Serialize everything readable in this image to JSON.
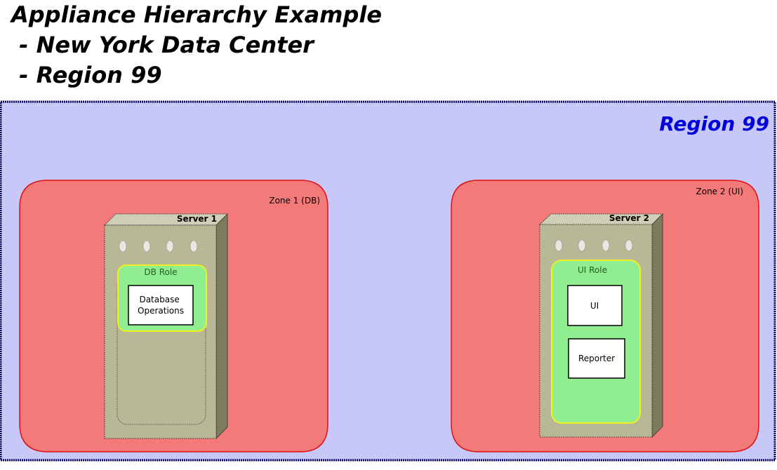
{
  "title": {
    "line1": "Appliance Hierarchy Example",
    "line2": " - New York Data Center",
    "line3": " - Region 99"
  },
  "region": {
    "label": "Region 99",
    "fill": "#c8c8f8",
    "border": "#000066",
    "label_color": "#0000dd"
  },
  "zones": [
    {
      "label": "Zone 1 (DB)",
      "fill": "#f47a7a",
      "border": "#e01010",
      "server": {
        "label": "Server 1",
        "role": {
          "label": "DB Role",
          "components": [
            "Database\nOperations"
          ]
        }
      }
    },
    {
      "label": "Zone 2 (UI)",
      "fill": "#f47a7a",
      "border": "#e01010",
      "server": {
        "label": "Server 2",
        "role": {
          "label": "UI Role",
          "components": [
            "UI",
            "Reporter"
          ]
        }
      }
    }
  ],
  "colors": {
    "server_front": "#b8b896",
    "server_top": "#cfcfb8",
    "server_side": "#7c7c5c",
    "role_fill": "#90ee90",
    "role_border": "#f0f020",
    "role_text": "#206020",
    "component_fill": "#ffffff",
    "component_border": "#000000"
  }
}
